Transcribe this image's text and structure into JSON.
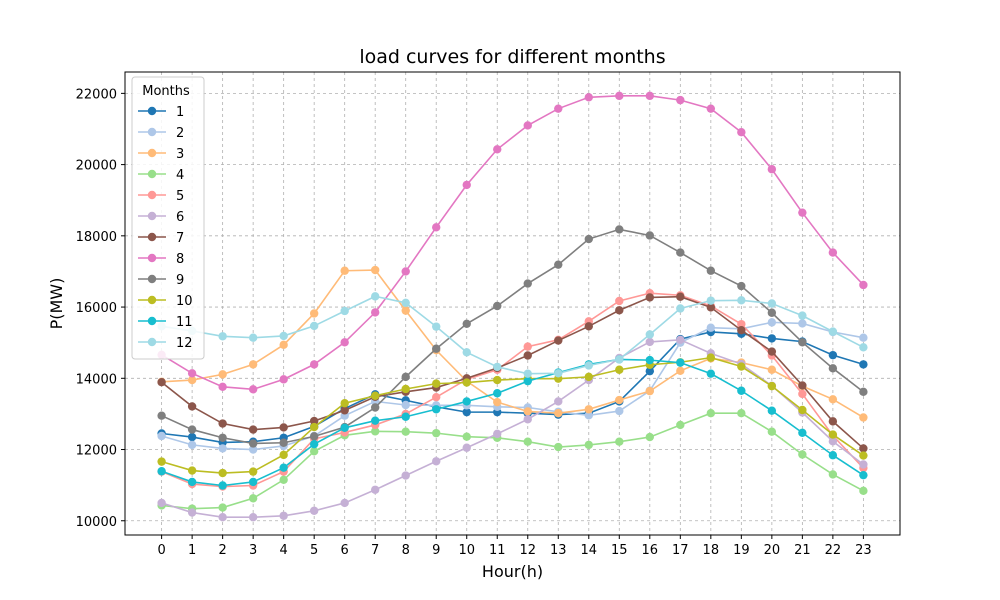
{
  "chart_data": {
    "type": "line",
    "title": "load curves for different months",
    "xlabel": "Hour(h)",
    "ylabel": "P(MW)",
    "x": [
      0,
      1,
      2,
      3,
      4,
      5,
      6,
      7,
      8,
      9,
      10,
      11,
      12,
      13,
      14,
      15,
      16,
      17,
      18,
      19,
      20,
      21,
      22,
      23
    ],
    "xlim": [
      -1.2,
      24.2
    ],
    "ylim": [
      9600,
      22600
    ],
    "yticks": [
      10000,
      12000,
      14000,
      16000,
      18000,
      20000,
      22000
    ],
    "grid": true,
    "legend": {
      "title": "Months",
      "placement": "upper-left"
    },
    "series": [
      {
        "name": "1",
        "color": "#1f77b4",
        "values": [
          12450,
          12350,
          12200,
          12220,
          12330,
          12650,
          13150,
          13550,
          13380,
          13200,
          13050,
          13050,
          13020,
          12980,
          13020,
          13350,
          14200,
          15100,
          15300,
          15250,
          15120,
          15030,
          14650,
          14390
        ]
      },
      {
        "name": "2",
        "color": "#aec7e8",
        "values": [
          12380,
          12130,
          12030,
          12000,
          12100,
          12380,
          12950,
          13350,
          13250,
          13240,
          13240,
          13200,
          13180,
          13060,
          12960,
          13080,
          13650,
          15000,
          15420,
          15390,
          15570,
          15540,
          15300,
          15140
        ]
      },
      {
        "name": "3",
        "color": "#ffbb78",
        "values": [
          13900,
          13950,
          14110,
          14390,
          14940,
          15820,
          17020,
          17040,
          15900,
          14790,
          13920,
          13330,
          13070,
          13020,
          13130,
          13390,
          13640,
          14210,
          14560,
          14440,
          14240,
          13780,
          13410,
          12900
        ]
      },
      {
        "name": "4",
        "color": "#98df8a",
        "values": [
          10430,
          10340,
          10370,
          10630,
          11150,
          11950,
          12400,
          12510,
          12500,
          12460,
          12360,
          12330,
          12220,
          12070,
          12130,
          12220,
          12350,
          12690,
          13020,
          13020,
          12500,
          11860,
          11300,
          10840
        ]
      },
      {
        "name": "5",
        "color": "#ff9896",
        "values": [
          11380,
          11030,
          10960,
          10990,
          11380,
          12300,
          12480,
          12690,
          13000,
          13470,
          13970,
          14240,
          14890,
          15080,
          15600,
          16170,
          16390,
          16330,
          16030,
          15520,
          14640,
          13560,
          12390,
          11480
        ]
      },
      {
        "name": "6",
        "color": "#c5b0d5",
        "values": [
          10500,
          10230,
          10100,
          10100,
          10140,
          10280,
          10500,
          10870,
          11270,
          11670,
          12050,
          12440,
          12850,
          13350,
          13950,
          14570,
          15020,
          15080,
          14700,
          14400,
          13790,
          13040,
          12230,
          11580
        ]
      },
      {
        "name": "7",
        "color": "#8c564b",
        "values": [
          13890,
          13210,
          12730,
          12560,
          12620,
          12800,
          13100,
          13480,
          13620,
          13740,
          14000,
          14290,
          14640,
          15060,
          15460,
          15910,
          16270,
          16290,
          15990,
          15350,
          14750,
          13800,
          12790,
          12030
        ]
      },
      {
        "name": "8",
        "color": "#e377c2",
        "values": [
          14660,
          14140,
          13760,
          13690,
          13970,
          14390,
          15010,
          15850,
          17000,
          18240,
          19430,
          20430,
          21100,
          21570,
          21890,
          21930,
          21930,
          21810,
          21570,
          20910,
          19870,
          18650,
          17530,
          16620
        ]
      },
      {
        "name": "9",
        "color": "#7f7f7f",
        "values": [
          12950,
          12560,
          12330,
          12170,
          12190,
          12370,
          12630,
          13180,
          14040,
          14830,
          15530,
          16030,
          16660,
          17190,
          17910,
          18180,
          18010,
          17530,
          17020,
          16590,
          15840,
          15010,
          14280,
          13620
        ]
      },
      {
        "name": "10",
        "color": "#bcbd22",
        "values": [
          11660,
          11410,
          11340,
          11380,
          11850,
          12630,
          13300,
          13510,
          13700,
          13850,
          13880,
          13950,
          13990,
          13990,
          14040,
          14240,
          14380,
          14450,
          14580,
          14330,
          13780,
          13110,
          12420,
          11830
        ]
      },
      {
        "name": "11",
        "color": "#17becf",
        "values": [
          11390,
          11090,
          10990,
          11090,
          11490,
          12150,
          12610,
          12810,
          12920,
          13130,
          13350,
          13580,
          13920,
          14160,
          14390,
          14530,
          14510,
          14440,
          14130,
          13650,
          13090,
          12470,
          11840,
          11280
        ]
      },
      {
        "name": "12",
        "color": "#9edae5",
        "values": [
          15460,
          15330,
          15180,
          15140,
          15190,
          15470,
          15890,
          16300,
          16120,
          15450,
          14730,
          14320,
          14130,
          14140,
          14360,
          14530,
          15230,
          15960,
          16180,
          16190,
          16100,
          15760,
          15310,
          14870
        ]
      }
    ]
  }
}
